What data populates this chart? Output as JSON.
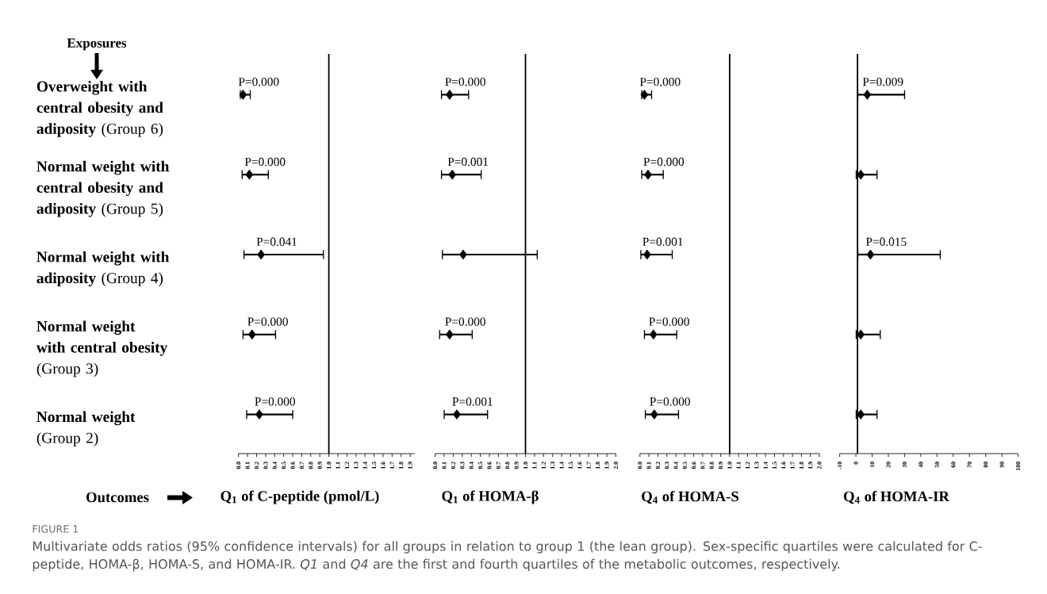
{
  "chart_data": [
    {
      "type": "scatter",
      "orientation": "horizontal",
      "color": "#000000",
      "marker": "diamond",
      "ylabel": "Exposures",
      "xlabel": "Q$_{1}$ of C-peptide (pmol/L)",
      "categories": [
        "**Overweight with central obesity and adiposity** (Group 6)",
        "**Normal weight with central obesity and adiposity** (Group 5)",
        "**Normal weight with adiposity** (Group 4)",
        "**Normal weight with central obesity** (Group 3)",
        "**Normal weight** (Group 2)"
      ],
      "values": [
        0.05,
        0.12,
        0.25,
        0.15,
        0.23
      ],
      "errors": [
        [
          0.02,
          0.13
        ],
        [
          0.04,
          0.33
        ],
        [
          0.06,
          0.94
        ],
        [
          0.05,
          0.41
        ],
        [
          0.09,
          0.6
        ]
      ],
      "xlim": [
        0,
        1.95
      ],
      "xticks": [
        {
          "value": 0,
          "label": "0.0"
        },
        0.1,
        0.2,
        0.3,
        0.4,
        0.5,
        0.6,
        0.7,
        0.8,
        0.9,
        {
          "value": 1,
          "label": "1.0"
        },
        1.1,
        1.2,
        1.3,
        1.4,
        1.5,
        1.6,
        1.7,
        1.8,
        1.9
      ],
      "ref_lines": [
        {
          "axis": "x",
          "value": 1
        }
      ],
      "annotations": [
        "P=0.000",
        "P=0.000",
        "P=0.041",
        "P=0.000",
        "P=0.000",
        "Outcomes",
        "FIGURE 1",
        "Multivariate odds ratios (95% confidence intervals) for all groups in relation to group 1 (the lean group). Sex-specific quartiles were calculated for C-peptide, HOMA-β, HOMA-S, and HOMA-IR. *Q1* and *Q4* are the first and fourth quartiles of the metabolic outcomes, respectively."
      ]
    },
    {
      "type": "scatter",
      "orientation": "horizontal",
      "color": "#000000",
      "marker": "diamond",
      "tick_labels": "x",
      "xlabel": "Q$_{1}$ of HOMA-β",
      "categories": [
        null,
        null,
        null,
        null,
        null
      ],
      "values": [
        0.16,
        0.19,
        0.31,
        0.16,
        0.24
      ],
      "errors": [
        [
          0.07,
          0.37
        ],
        [
          0.07,
          0.51
        ],
        [
          0.08,
          1.13
        ],
        [
          0.05,
          0.41
        ],
        [
          0.1,
          0.58
        ]
      ],
      "xlim": [
        0,
        2
      ],
      "xticks": [
        {
          "value": 0,
          "label": "0.0"
        },
        0.1,
        0.2,
        0.3,
        0.4,
        0.5,
        0.6,
        0.7,
        0.8,
        0.9,
        {
          "value": 1,
          "label": "1.0"
        },
        1.1,
        1.2,
        1.3,
        1.4,
        1.5,
        1.6,
        1.7,
        1.8,
        1.9,
        {
          "value": 2,
          "label": "2.0"
        }
      ],
      "ref_lines": [
        {
          "axis": "x",
          "value": 1
        }
      ],
      "annotations": [
        "P=0.000",
        "P=0.001",
        "P=0.000",
        "P=0.001"
      ]
    },
    {
      "type": "scatter",
      "orientation": "horizontal",
      "color": "#000000",
      "marker": "diamond",
      "tick_labels": "x",
      "xlabel": "Q$_{4}$ of HOMA-S",
      "categories": [
        null,
        null,
        null,
        null,
        null
      ],
      "values": [
        0.05,
        0.09,
        0.08,
        0.15,
        0.16
      ],
      "errors": [
        [
          0.02,
          0.13
        ],
        [
          0.02,
          0.26
        ],
        [
          0.01,
          0.36
        ],
        [
          0.05,
          0.41
        ],
        [
          0.06,
          0.43
        ]
      ],
      "xlim": [
        0,
        2
      ],
      "xticks": [
        {
          "value": 0,
          "label": "0.0"
        },
        0.1,
        0.2,
        0.3,
        0.4,
        0.5,
        0.6,
        0.7,
        0.8,
        0.9,
        {
          "value": 1,
          "label": "1.0"
        },
        1.1,
        1.2,
        1.3,
        1.4,
        1.5,
        1.6,
        1.7,
        1.8,
        1.9,
        {
          "value": 2,
          "label": "2.0"
        }
      ],
      "ref_lines": [
        {
          "axis": "x",
          "value": 1
        }
      ],
      "annotations": [
        "P=0.000",
        "P=0.000",
        "P=0.001",
        "P=0.000",
        "P=0.000"
      ]
    },
    {
      "type": "scatter",
      "orientation": "horizontal",
      "color": "#000000",
      "marker": "diamond",
      "tick_labels": "x",
      "xlabel": "Q$_{4}$ of HOMA-IR",
      "categories": [
        null,
        null,
        null,
        null,
        null
      ],
      "values": [
        7,
        3,
        9,
        3,
        3
      ],
      "errors": [
        [
          1.2,
          30
        ],
        [
          0.2,
          13
        ],
        [
          1.2,
          52
        ],
        [
          0.2,
          15
        ],
        [
          0.2,
          13
        ]
      ],
      "xlim": [
        -10,
        100
      ],
      "xticks": [
        -10,
        0,
        10,
        20,
        30,
        40,
        50,
        60,
        70,
        80,
        90,
        100
      ],
      "ref_lines": [
        {
          "axis": "x",
          "value": 1
        }
      ],
      "annotations": [
        "P=0.009",
        "P=0.015"
      ]
    }
  ]
}
